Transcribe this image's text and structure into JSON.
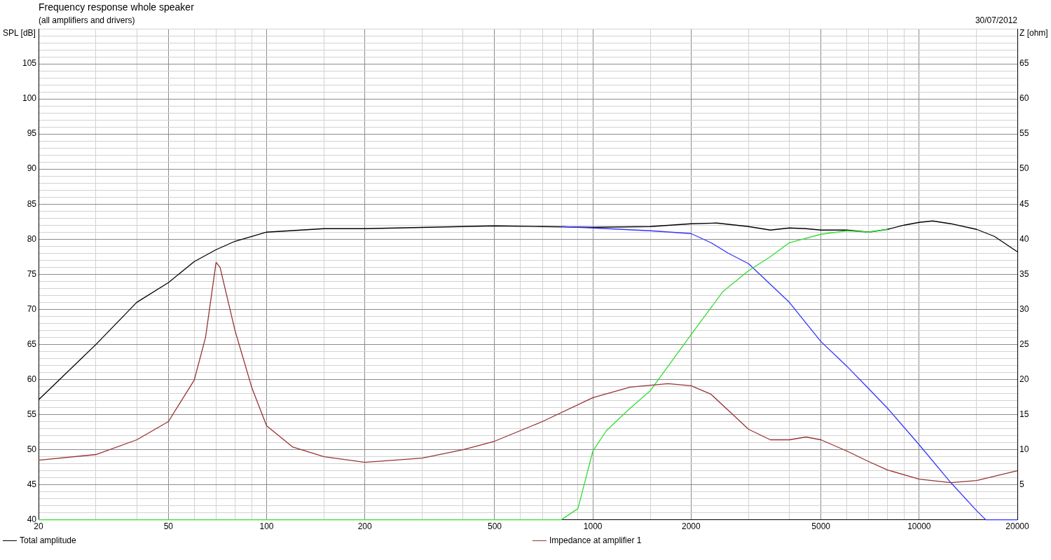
{
  "chart_data": {
    "type": "line",
    "title": "Frequency response whole speaker",
    "subtitle": "(all amplifiers and drivers)",
    "annotations": [
      "30/07/2012"
    ],
    "ylabel": "SPL [dB]",
    "y2label": "Z [ohm]",
    "log": "x",
    "grid": true,
    "legend": "bottom",
    "marker": "none",
    "line_style": "solid",
    "xlim": [
      20,
      20000
    ],
    "xticks": [
      20,
      {
        "value": 30,
        "label": null
      },
      {
        "value": 40,
        "label": null
      },
      50,
      {
        "value": 60,
        "label": null
      },
      {
        "value": 70,
        "label": null
      },
      {
        "value": 80,
        "label": null
      },
      {
        "value": 90,
        "label": null
      },
      100,
      {
        "value": 150,
        "label": null
      },
      200,
      {
        "value": 300,
        "label": null
      },
      {
        "value": 400,
        "label": null
      },
      500,
      {
        "value": 600,
        "label": null
      },
      {
        "value": 700,
        "label": null
      },
      {
        "value": 800,
        "label": null
      },
      {
        "value": 900,
        "label": null
      },
      1000,
      {
        "value": 1500,
        "label": null
      },
      2000,
      {
        "value": 3000,
        "label": null
      },
      {
        "value": 4000,
        "label": null
      },
      5000,
      {
        "value": 6000,
        "label": null
      },
      {
        "value": 7000,
        "label": null
      },
      {
        "value": 8000,
        "label": null
      },
      {
        "value": 9000,
        "label": null
      },
      10000,
      {
        "value": 15000,
        "label": null
      },
      20000
    ],
    "ylim": [
      40,
      110
    ],
    "yticks": [
      40,
      {
        "value": 41,
        "label": null
      },
      {
        "value": 42,
        "label": null
      },
      {
        "value": 43,
        "label": null
      },
      {
        "value": 44,
        "label": null
      },
      45,
      {
        "value": 46,
        "label": null
      },
      {
        "value": 47,
        "label": null
      },
      {
        "value": 48,
        "label": null
      },
      {
        "value": 49,
        "label": null
      },
      50,
      {
        "value": 51,
        "label": null
      },
      {
        "value": 52,
        "label": null
      },
      {
        "value": 53,
        "label": null
      },
      {
        "value": 54,
        "label": null
      },
      55,
      {
        "value": 56,
        "label": null
      },
      {
        "value": 57,
        "label": null
      },
      {
        "value": 58,
        "label": null
      },
      {
        "value": 59,
        "label": null
      },
      60,
      {
        "value": 61,
        "label": null
      },
      {
        "value": 62,
        "label": null
      },
      {
        "value": 63,
        "label": null
      },
      {
        "value": 64,
        "label": null
      },
      65,
      {
        "value": 66,
        "label": null
      },
      {
        "value": 67,
        "label": null
      },
      {
        "value": 68,
        "label": null
      },
      {
        "value": 69,
        "label": null
      },
      70,
      {
        "value": 71,
        "label": null
      },
      {
        "value": 72,
        "label": null
      },
      {
        "value": 73,
        "label": null
      },
      {
        "value": 74,
        "label": null
      },
      75,
      {
        "value": 76,
        "label": null
      },
      {
        "value": 77,
        "label": null
      },
      {
        "value": 78,
        "label": null
      },
      {
        "value": 79,
        "label": null
      },
      80,
      {
        "value": 81,
        "label": null
      },
      {
        "value": 82,
        "label": null
      },
      {
        "value": 83,
        "label": null
      },
      {
        "value": 84,
        "label": null
      },
      85,
      {
        "value": 86,
        "label": null
      },
      {
        "value": 87,
        "label": null
      },
      {
        "value": 88,
        "label": null
      },
      {
        "value": 89,
        "label": null
      },
      90,
      {
        "value": 91,
        "label": null
      },
      {
        "value": 92,
        "label": null
      },
      {
        "value": 93,
        "label": null
      },
      {
        "value": 94,
        "label": null
      },
      95,
      {
        "value": 96,
        "label": null
      },
      {
        "value": 97,
        "label": null
      },
      {
        "value": 98,
        "label": null
      },
      {
        "value": 99,
        "label": null
      },
      100,
      {
        "value": 101,
        "label": null
      },
      {
        "value": 102,
        "label": null
      },
      {
        "value": 103,
        "label": null
      },
      {
        "value": 104,
        "label": null
      },
      105,
      {
        "value": 106,
        "label": null
      },
      {
        "value": 107,
        "label": null
      },
      {
        "value": 108,
        "label": null
      },
      {
        "value": 109,
        "label": null
      },
      {
        "value": 110,
        "label": null
      }
    ],
    "y2lim": [
      0,
      70
    ],
    "y2ticks": [
      5,
      10,
      15,
      20,
      25,
      30,
      35,
      40,
      45,
      50,
      55,
      60,
      65
    ],
    "series": [
      {
        "name": "Total amplitude",
        "color": "#000000",
        "x": [
          20,
          30,
          40,
          50,
          60,
          70,
          80,
          100,
          150,
          200,
          500,
          700,
          1000,
          1500,
          2000,
          2400,
          3000,
          3500,
          4000,
          4500,
          5000,
          6000,
          7000,
          8000,
          9000,
          10000,
          11000,
          12500,
          15000,
          17000,
          20000
        ],
        "values": [
          57.1,
          65,
          71,
          73.8,
          76.8,
          78.5,
          79.7,
          81,
          81.5,
          81.5,
          81.9,
          81.8,
          81.7,
          81.8,
          82.2,
          82.3,
          81.8,
          81.3,
          81.6,
          81.5,
          81.3,
          81.3,
          81,
          81.4,
          82,
          82.4,
          82.6,
          82.2,
          81.4,
          80.4,
          78.2
        ]
      },
      {
        "color": "#3333ff",
        "x": [
          800,
          1000,
          1500,
          2000,
          2300,
          2600,
          3000,
          4000,
          5000,
          6000,
          7000,
          8000,
          10000,
          12500,
          15000,
          16000,
          20000
        ],
        "values": [
          81.8,
          81.6,
          81.2,
          80.8,
          79.5,
          78,
          76.5,
          71,
          65.4,
          61.9,
          58.7,
          55.9,
          50.7,
          45.3,
          41.3,
          40,
          40
        ]
      },
      {
        "color": "#33dd33",
        "x": [
          20,
          800,
          900,
          1000,
          1100,
          1300,
          1500,
          2000,
          2500,
          3000,
          3500,
          4000,
          5000,
          6000,
          7000,
          8000
        ],
        "values": [
          40,
          40,
          41.6,
          49.8,
          52.7,
          55.9,
          58.4,
          66.4,
          72.5,
          75.5,
          77.5,
          79.5,
          80.7,
          81.2,
          81,
          81.4
        ]
      },
      {
        "name": "Impedance at amplifier 1",
        "color": "#993333",
        "axis": "y2",
        "x": [
          20,
          30,
          40,
          50,
          60,
          65,
          70,
          72,
          80,
          90,
          100,
          120,
          150,
          200,
          300,
          400,
          500,
          700,
          1000,
          1300,
          1700,
          2000,
          2300,
          2700,
          3000,
          3500,
          4000,
          4500,
          5000,
          6000,
          7000,
          8000,
          10000,
          12500,
          15000,
          20000
        ],
        "values": [
          8.5,
          9.3,
          11.4,
          14,
          19.9,
          26,
          36.7,
          36,
          27,
          18.9,
          13.4,
          10.4,
          9,
          8.2,
          8.8,
          10,
          11.2,
          14,
          17.4,
          18.9,
          19.4,
          19.1,
          17.9,
          14.9,
          12.9,
          11.4,
          11.4,
          11.8,
          11.4,
          9.8,
          8.3,
          7.1,
          5.8,
          5.3,
          5.6,
          7
        ]
      }
    ]
  }
}
